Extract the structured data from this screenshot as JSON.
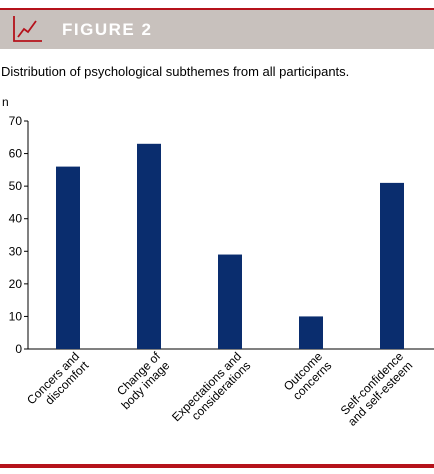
{
  "figure": {
    "label": "FIGURE 2",
    "caption": "Distribution of psychological subthemes from all participants."
  },
  "colors": {
    "accent": "#b5121b",
    "banner": "#c8c1bd",
    "bar": "#0a2d6e"
  },
  "icons": {
    "banner": "line-chart-icon"
  },
  "chart_data": {
    "type": "bar",
    "ylabel": "n",
    "xlabel": "",
    "ylim": [
      0,
      70
    ],
    "yticks": [
      0,
      10,
      20,
      30,
      40,
      50,
      60,
      70
    ],
    "grid": false,
    "categories": [
      [
        "Concers and",
        "discomfort"
      ],
      [
        "Change of",
        "body image"
      ],
      [
        "Expectations and",
        "considerations"
      ],
      [
        "Outcome",
        "concerns"
      ],
      [
        "Self-confidence",
        "and self-esteem"
      ]
    ],
    "values": [
      56,
      63,
      29,
      10,
      51
    ]
  }
}
